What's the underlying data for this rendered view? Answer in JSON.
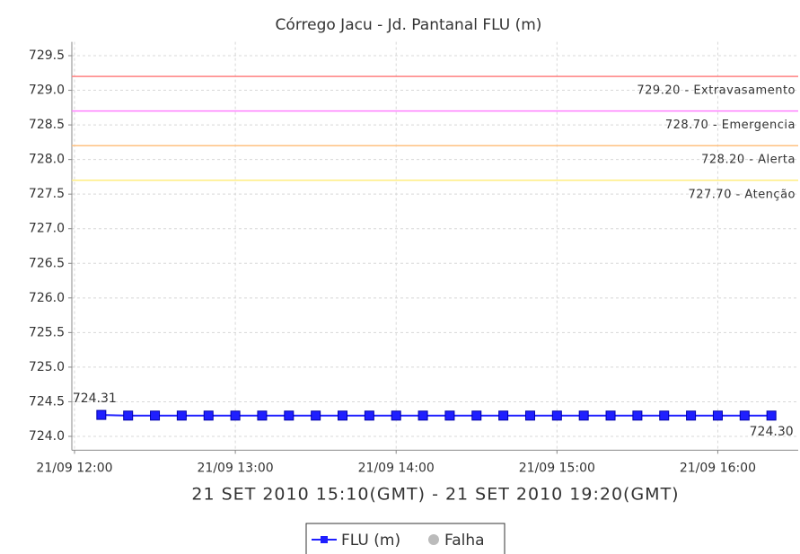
{
  "chart_data": {
    "type": "line",
    "title": "Córrego Jacu - Jd. Pantanal FLU (m)",
    "subtitle": "21 SET 2010 15:10(GMT) - 21 SET 2010 19:20(GMT)",
    "x": [
      "21/09 12:10",
      "21/09 12:20",
      "21/09 12:30",
      "21/09 12:40",
      "21/09 12:50",
      "21/09 13:00",
      "21/09 13:10",
      "21/09 13:20",
      "21/09 13:30",
      "21/09 13:40",
      "21/09 13:50",
      "21/09 14:00",
      "21/09 14:10",
      "21/09 14:20",
      "21/09 14:30",
      "21/09 14:40",
      "21/09 14:50",
      "21/09 15:00",
      "21/09 15:10",
      "21/09 15:20",
      "21/09 15:30",
      "21/09 15:40",
      "21/09 15:50",
      "21/09 16:00",
      "21/09 16:10",
      "21/09 16:20"
    ],
    "series": [
      {
        "name": "FLU (m)",
        "color": "#1f1fff",
        "values": [
          724.31,
          724.3,
          724.3,
          724.3,
          724.3,
          724.3,
          724.3,
          724.3,
          724.3,
          724.3,
          724.3,
          724.3,
          724.3,
          724.3,
          724.3,
          724.3,
          724.3,
          724.3,
          724.3,
          724.3,
          724.3,
          724.3,
          724.3,
          724.3,
          724.3,
          724.3
        ],
        "value_labels": [
          "724.31",
          null,
          null,
          null,
          null,
          null,
          null,
          null,
          null,
          null,
          null,
          null,
          null,
          null,
          null,
          null,
          null,
          null,
          null,
          null,
          null,
          null,
          null,
          null,
          null,
          "724.30"
        ]
      }
    ],
    "legend_extra": [
      {
        "name": "Falha",
        "color": "#bbbbbb"
      }
    ],
    "thresholds": [
      {
        "value": 729.2,
        "label": "729.20 - Extravasamento",
        "color": "#ff8080"
      },
      {
        "value": 728.7,
        "label": "728.70 - Emergencia",
        "color": "#ff80ff"
      },
      {
        "value": 728.2,
        "label": "728.20 - Alerta",
        "color": "#ffc080"
      },
      {
        "value": 727.7,
        "label": "727.70 - Atenção",
        "color": "#ffee80"
      }
    ],
    "xlim": [
      "21/09 11:59",
      "21/09 16:30"
    ],
    "xticks": [
      "21/09 12:00",
      "21/09 13:00",
      "21/09 14:00",
      "21/09 15:00",
      "21/09 16:00"
    ],
    "ylim": [
      723.8,
      729.7
    ],
    "yticks": [
      {
        "value": 724,
        "label": "724.0"
      },
      724.5,
      {
        "value": 725,
        "label": "725.0"
      },
      725.5,
      {
        "value": 726,
        "label": "726.0"
      },
      726.5,
      {
        "value": 727,
        "label": "727.0"
      },
      727.5,
      {
        "value": 728,
        "label": "728.0"
      },
      728.5,
      {
        "value": 729,
        "label": "729.0"
      },
      729.5
    ],
    "grid": true
  }
}
